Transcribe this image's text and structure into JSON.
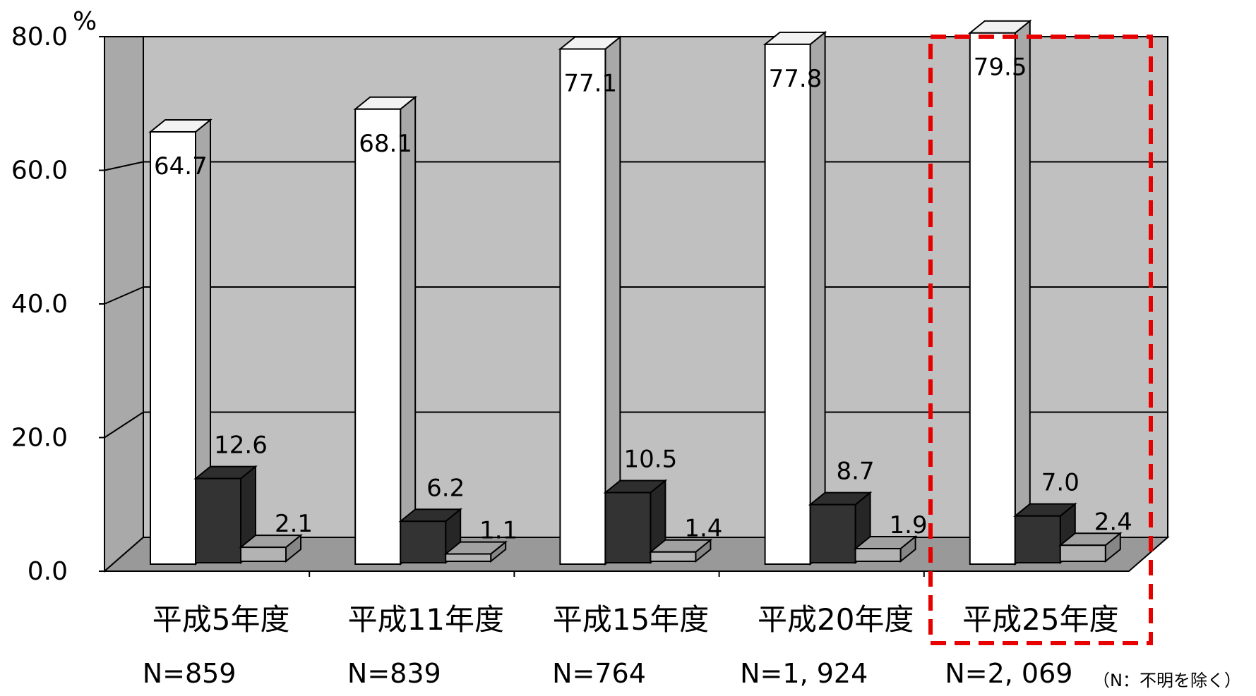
{
  "chart_data": {
    "type": "bar",
    "style": "3d-column",
    "y_unit": "%",
    "ylim": [
      0,
      80
    ],
    "yticks": [
      "0.0",
      "20.0",
      "40.0",
      "60.0",
      "80.0"
    ],
    "categories": [
      "平成5年度",
      "平成11年度",
      "平成15年度",
      "平成20年度",
      "平成25年度"
    ],
    "sample_sizes": [
      "N=859",
      "N=839",
      "N=764",
      "N=1, 924",
      "N=2, 069"
    ],
    "note": "（N：不明を除く）",
    "series": [
      {
        "values": [
          64.7,
          68.1,
          77.1,
          77.8,
          79.5
        ],
        "color": "#ffffff"
      },
      {
        "values": [
          12.6,
          6.2,
          10.5,
          8.7,
          7.0
        ],
        "color": "#333333"
      },
      {
        "values": [
          2.1,
          1.1,
          1.4,
          1.9,
          2.4
        ],
        "color": "#b3b3b3"
      }
    ],
    "value_labels": [
      [
        "64.7",
        "68.1",
        "77.1",
        "77.8",
        "79.5"
      ],
      [
        "12.6",
        "6.2",
        "10.5",
        "8.7",
        "7.0"
      ],
      [
        "2.1",
        "1.1",
        "1.4",
        "1.9",
        "2.4"
      ]
    ],
    "highlight_category": 4,
    "highlight_color": "#e60000",
    "grid": true,
    "wall_color": "#c0c0c0",
    "floor_color": "#999999",
    "legend": "none"
  }
}
